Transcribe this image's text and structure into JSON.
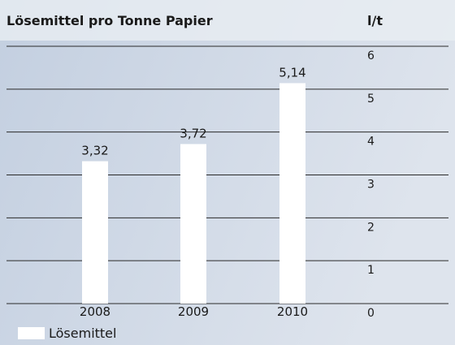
{
  "chart_data": {
    "type": "bar",
    "title": "Lösemittel pro Tonne Papier",
    "y_axis_label": "l/t",
    "categories": [
      "2008",
      "2009",
      "2010"
    ],
    "series": [
      {
        "name": "Lösemittel",
        "color": "#ffffff",
        "values": [
          3.32,
          3.72,
          5.14
        ],
        "value_labels": [
          "3,32",
          "3,72",
          "5,14"
        ]
      }
    ],
    "ylim": [
      0,
      6
    ],
    "yticks": [
      0,
      1,
      2,
      3,
      4,
      5,
      6
    ],
    "grid": true,
    "legend": "bottom-left"
  }
}
